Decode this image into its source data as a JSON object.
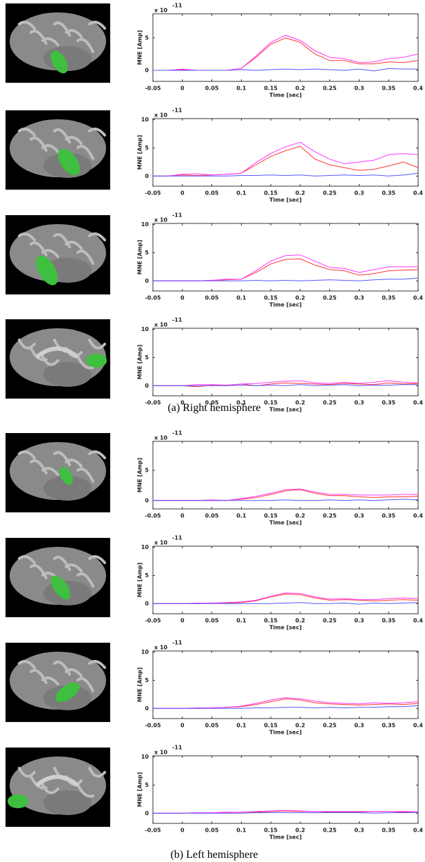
{
  "chart_data": [
    {
      "type": "line",
      "xlabel": "Time [sec]",
      "ylabel": "MNE [Amp]",
      "exponent_label": {
        "base": "x 10",
        "power": "-11"
      },
      "x": [
        -0.05,
        -0.025,
        0,
        0.025,
        0.05,
        0.075,
        0.1,
        0.125,
        0.15,
        0.175,
        0.2,
        0.225,
        0.25,
        0.275,
        0.3,
        0.325,
        0.35,
        0.375,
        0.4
      ],
      "xlim": [
        -0.05,
        0.4
      ],
      "xticks": [
        -0.05,
        0,
        0.05,
        0.1,
        0.15,
        0.2,
        0.25,
        0.3,
        0.35,
        0.4
      ],
      "ylim": [
        -1.7,
        8.7
      ],
      "yticks": [
        0,
        5
      ],
      "series": [
        {
          "color": "#ff3333",
          "values": [
            0,
            0,
            0.1,
            0,
            0,
            0,
            0.3,
            2,
            4,
            5,
            4.3,
            2.5,
            1.5,
            1.5,
            1,
            1,
            1.3,
            1.2,
            1.5
          ]
        },
        {
          "color": "#ff33ff",
          "values": [
            0,
            0,
            0.2,
            0,
            0,
            0,
            0.3,
            2.2,
            4.3,
            5.4,
            4.6,
            3,
            2,
            1.8,
            1.2,
            1.3,
            1.8,
            2,
            2.5
          ]
        },
        {
          "color": "#5555ff",
          "values": [
            0,
            0,
            0,
            0,
            0,
            0,
            0.1,
            0,
            0.1,
            0.2,
            0.1,
            0.2,
            0.1,
            0,
            0.2,
            -0.1,
            0.3,
            0.2,
            0.2
          ]
        }
      ]
    },
    {
      "type": "line",
      "xlabel": "Time [sec]",
      "ylabel": "MNE [Amp]",
      "exponent_label": {
        "base": "x 10",
        "power": "-11"
      },
      "x": [
        -0.05,
        -0.025,
        0,
        0.025,
        0.05,
        0.075,
        0.1,
        0.125,
        0.15,
        0.175,
        0.2,
        0.225,
        0.25,
        0.275,
        0.3,
        0.325,
        0.35,
        0.375,
        0.4
      ],
      "xlim": [
        -0.05,
        0.4
      ],
      "xticks": [
        -0.05,
        0,
        0.05,
        0.1,
        0.15,
        0.2,
        0.25,
        0.3,
        0.35,
        0.4
      ],
      "ylim": [
        -1.8,
        10.2
      ],
      "yticks": [
        0,
        5,
        10
      ],
      "series": [
        {
          "color": "#ff3333",
          "values": [
            0,
            0,
            0.2,
            0.1,
            0.2,
            0.3,
            0.5,
            2,
            3.5,
            4.5,
            5.3,
            3,
            2,
            1.5,
            1,
            1.2,
            1.8,
            2.5,
            1.5
          ]
        },
        {
          "color": "#ff33ff",
          "values": [
            0,
            0,
            0.3,
            0.4,
            0.2,
            0.3,
            0.5,
            2.4,
            4,
            5.2,
            6,
            4.3,
            3,
            2.2,
            2.5,
            2.8,
            3.8,
            4,
            3.8
          ]
        },
        {
          "color": "#5555ff",
          "values": [
            0,
            0,
            0,
            0,
            0,
            0,
            0.1,
            0.1,
            0.2,
            0.1,
            0.2,
            0,
            0.1,
            0.2,
            0.1,
            0.2,
            0,
            0.2,
            0.5
          ]
        }
      ]
    },
    {
      "type": "line",
      "xlabel": "Time [sec]",
      "ylabel": "MNE [Amp]",
      "exponent_label": {
        "base": "x 10",
        "power": "-11"
      },
      "x": [
        -0.05,
        -0.025,
        0,
        0.025,
        0.05,
        0.075,
        0.1,
        0.125,
        0.15,
        0.175,
        0.2,
        0.225,
        0.25,
        0.275,
        0.3,
        0.325,
        0.35,
        0.375,
        0.4
      ],
      "xlim": [
        -0.05,
        0.4
      ],
      "xticks": [
        -0.05,
        0,
        0.05,
        0.1,
        0.15,
        0.2,
        0.25,
        0.3,
        0.35,
        0.4
      ],
      "ylim": [
        -1.8,
        10.2
      ],
      "yticks": [
        0,
        5,
        10
      ],
      "series": [
        {
          "color": "#ff3333",
          "values": [
            0,
            0,
            0,
            0,
            0.1,
            0.2,
            0.3,
            1.5,
            3,
            3.8,
            3.9,
            2.8,
            2,
            1.8,
            1,
            1.3,
            1.8,
            1.9,
            2
          ]
        },
        {
          "color": "#ff33ff",
          "values": [
            0,
            0,
            0,
            0,
            0.1,
            0.3,
            0.3,
            1.8,
            3.5,
            4.5,
            4.6,
            3.5,
            2.4,
            2.2,
            1.5,
            2,
            2.5,
            2.5,
            2.5
          ]
        },
        {
          "color": "#5555ff",
          "values": [
            0,
            0,
            0,
            0,
            0,
            0,
            0,
            0.1,
            0,
            0.1,
            0,
            0.1,
            0.2,
            0.1,
            0,
            0.2,
            0.3,
            0.3,
            0.5
          ]
        }
      ]
    },
    {
      "type": "line",
      "xlabel": "Time [sec]",
      "ylabel": "MNE [Amp]",
      "exponent_label": {
        "base": "x 10",
        "power": "-11"
      },
      "x": [
        -0.05,
        -0.025,
        0,
        0.025,
        0.05,
        0.075,
        0.1,
        0.125,
        0.15,
        0.175,
        0.2,
        0.225,
        0.25,
        0.275,
        0.3,
        0.325,
        0.35,
        0.375,
        0.4
      ],
      "xlim": [
        -0.05,
        0.4
      ],
      "xticks": [
        -0.05,
        0,
        0.05,
        0.1,
        0.15,
        0.2,
        0.25,
        0.3,
        0.35,
        0.4
      ],
      "ylim": [
        -1.8,
        10.2
      ],
      "yticks": [
        0,
        5,
        10
      ],
      "series": [
        {
          "color": "#ff3333",
          "values": [
            0,
            0,
            0,
            -0.2,
            0.1,
            0,
            0.3,
            0,
            0.3,
            0.5,
            0.4,
            0.3,
            0.2,
            0.4,
            0.3,
            0.2,
            0.5,
            0.3,
            0.4
          ]
        },
        {
          "color": "#ff33ff",
          "values": [
            0,
            0,
            0,
            0.2,
            0.2,
            0.1,
            0.3,
            0.4,
            0.6,
            0.8,
            0.9,
            0.5,
            0.4,
            0.6,
            0.4,
            0.6,
            0.9,
            0.6,
            0.5
          ]
        },
        {
          "color": "#5555ff",
          "values": [
            0,
            0,
            0,
            0,
            0,
            0,
            0.1,
            0,
            0.1,
            0,
            0.2,
            0,
            0.1,
            0.2,
            0,
            0.1,
            0.1,
            0.2,
            0.2
          ]
        }
      ]
    },
    {
      "type": "line",
      "xlabel": "Time [sec]",
      "ylabel": "MNE [Amp]",
      "exponent_label": {
        "base": "x 10",
        "power": "-11"
      },
      "x": [
        -0.05,
        -0.025,
        0,
        0.025,
        0.05,
        0.075,
        0.1,
        0.125,
        0.15,
        0.175,
        0.2,
        0.225,
        0.25,
        0.275,
        0.3,
        0.325,
        0.35,
        0.375,
        0.4
      ],
      "xlim": [
        -0.05,
        0.4
      ],
      "xticks": [
        -0.05,
        0,
        0.05,
        0.1,
        0.15,
        0.2,
        0.25,
        0.3,
        0.35,
        0.4
      ],
      "ylim": [
        -1.4,
        9.8
      ],
      "yticks": [
        0,
        5
      ],
      "series": [
        {
          "color": "#ff3333",
          "values": [
            0,
            0,
            0,
            0,
            0,
            0,
            0.2,
            0.5,
            1,
            1.6,
            1.8,
            1.2,
            0.8,
            0.8,
            0.6,
            0.5,
            0.6,
            0.6,
            0.7
          ]
        },
        {
          "color": "#ff33ff",
          "values": [
            0,
            0,
            0,
            0,
            0.1,
            0,
            0.3,
            0.7,
            1.2,
            1.8,
            1.9,
            1.4,
            1,
            1,
            0.9,
            0.9,
            0.9,
            1,
            1
          ]
        },
        {
          "color": "#5555ff",
          "values": [
            0,
            0,
            0,
            0,
            0,
            0,
            0,
            0,
            0,
            0.1,
            0,
            0,
            0.1,
            0,
            0.1,
            0,
            0.1,
            0.2,
            0.1
          ]
        }
      ]
    },
    {
      "type": "line",
      "xlabel": "Time [sec]",
      "ylabel": "MNE [Amp]",
      "exponent_label": {
        "base": "x 10",
        "power": "-11"
      },
      "x": [
        -0.05,
        -0.025,
        0,
        0.025,
        0.05,
        0.075,
        0.1,
        0.125,
        0.15,
        0.175,
        0.2,
        0.225,
        0.25,
        0.275,
        0.3,
        0.325,
        0.35,
        0.375,
        0.4
      ],
      "xlim": [
        -0.05,
        0.4
      ],
      "xticks": [
        -0.05,
        0,
        0.05,
        0.1,
        0.15,
        0.2,
        0.25,
        0.3,
        0.35,
        0.4
      ],
      "ylim": [
        -1.8,
        10.2
      ],
      "yticks": [
        0,
        5,
        10
      ],
      "series": [
        {
          "color": "#ff3333",
          "values": [
            0,
            0,
            0,
            0,
            0.1,
            0.1,
            0.2,
            0.5,
            1.2,
            1.7,
            1.6,
            1,
            0.6,
            0.7,
            0.6,
            0.5,
            0.6,
            0.7,
            0.6
          ]
        },
        {
          "color": "#ff33ff",
          "values": [
            0,
            0,
            0,
            0.1,
            0.1,
            0.2,
            0.3,
            0.6,
            1.3,
            1.9,
            1.8,
            1.2,
            0.8,
            0.9,
            0.7,
            0.7,
            0.9,
            1,
            0.9
          ]
        },
        {
          "color": "#5555ff",
          "values": [
            0,
            0,
            0,
            0,
            0,
            0,
            0,
            0,
            0,
            0.1,
            0.2,
            0,
            0,
            0.1,
            -0.1,
            0.1,
            0,
            0.1,
            0.2
          ]
        }
      ]
    },
    {
      "type": "line",
      "xlabel": "Time [sec]",
      "ylabel": "MNE [Amp]",
      "exponent_label": {
        "base": "x 10",
        "power": "-11"
      },
      "x": [
        -0.05,
        -0.025,
        0,
        0.025,
        0.05,
        0.075,
        0.1,
        0.125,
        0.15,
        0.175,
        0.2,
        0.225,
        0.25,
        0.275,
        0.3,
        0.325,
        0.35,
        0.375,
        0.4
      ],
      "xlim": [
        -0.05,
        0.4
      ],
      "xticks": [
        -0.05,
        0,
        0.05,
        0.1,
        0.15,
        0.2,
        0.25,
        0.3,
        0.35,
        0.4
      ],
      "ylim": [
        -1.8,
        10.2
      ],
      "yticks": [
        0,
        5,
        10
      ],
      "series": [
        {
          "color": "#ff3333",
          "values": [
            0,
            0,
            0,
            0,
            0.1,
            0.2,
            0.3,
            0.7,
            1.2,
            1.7,
            1.5,
            1,
            0.8,
            0.7,
            0.6,
            0.7,
            0.8,
            0.7,
            0.9
          ]
        },
        {
          "color": "#ff33ff",
          "values": [
            0,
            0,
            0,
            0.1,
            0.1,
            0.2,
            0.4,
            0.9,
            1.5,
            1.9,
            1.7,
            1.3,
            1,
            0.9,
            0.8,
            1,
            0.9,
            1,
            1.2
          ]
        },
        {
          "color": "#5555ff",
          "values": [
            0,
            0,
            0,
            0,
            0,
            0,
            0,
            0.1,
            0.1,
            0.2,
            0.2,
            0.1,
            0.2,
            0.1,
            0.2,
            0.2,
            0.3,
            0.3,
            0.5
          ]
        }
      ]
    },
    {
      "type": "line",
      "xlabel": "Time [sec]",
      "ylabel": "MNE [Amp]",
      "exponent_label": {
        "base": "x 10",
        "power": "-11"
      },
      "x": [
        -0.05,
        -0.025,
        0,
        0.025,
        0.05,
        0.075,
        0.1,
        0.125,
        0.15,
        0.175,
        0.2,
        0.225,
        0.25,
        0.275,
        0.3,
        0.325,
        0.35,
        0.375,
        0.4
      ],
      "xlim": [
        -0.05,
        0.4
      ],
      "xticks": [
        -0.05,
        0,
        0.05,
        0.1,
        0.15,
        0.2,
        0.25,
        0.3,
        0.35,
        0.4
      ],
      "ylim": [
        -1.8,
        10.2
      ],
      "yticks": [
        0,
        5,
        10
      ],
      "series": [
        {
          "color": "#ff3333",
          "values": [
            0,
            0,
            0,
            0.1,
            0.1,
            0.1,
            0.2,
            0.2,
            0.3,
            0.4,
            0.3,
            0.3,
            0.2,
            0.2,
            0.2,
            0.3,
            0.3,
            0.2,
            0.3
          ]
        },
        {
          "color": "#ff33ff",
          "values": [
            0,
            0,
            0,
            0.1,
            0.1,
            0.2,
            0.2,
            0.3,
            0.4,
            0.5,
            0.4,
            0.3,
            0.3,
            0.3,
            0.3,
            0.3,
            0.3,
            0.3,
            0.3
          ]
        },
        {
          "color": "#5555ff",
          "values": [
            0,
            0,
            0,
            0,
            0,
            0,
            0,
            0.1,
            0.1,
            0.1,
            0.1,
            0.1,
            0.1,
            0.1,
            0.1,
            0,
            0.1,
            0.1,
            0.1
          ]
        }
      ]
    }
  ],
  "captions": [
    "(a) Right hemisphere",
    "(b) Left hemisphere"
  ]
}
